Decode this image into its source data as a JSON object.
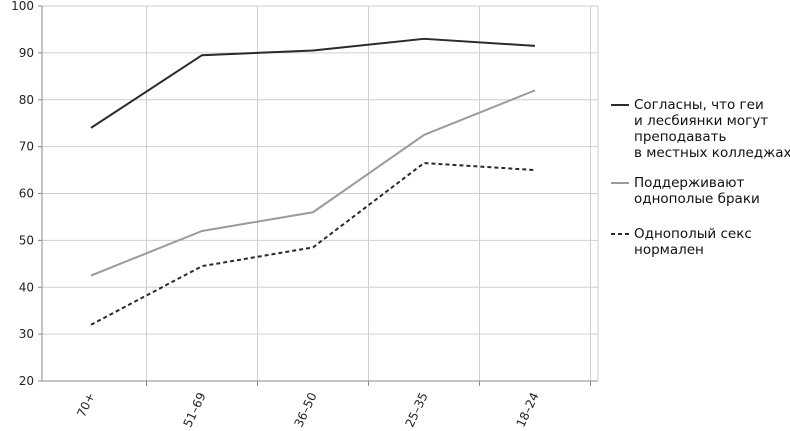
{
  "chart_data": {
    "type": "line",
    "categories": [
      "70+",
      "51–69",
      "36–50",
      "25–35",
      "18–24"
    ],
    "ylim": [
      20,
      100
    ],
    "yticks": [
      20,
      30,
      40,
      50,
      60,
      70,
      80,
      90,
      100
    ],
    "grid": true,
    "legend_position": "right",
    "series": [
      {
        "name": "Согласны, что геи и лесбиянки могут преподавать в местных колледжах",
        "legend_lines": [
          "Согласны, что геи",
          "и лесбиянки могут",
          "преподавать",
          "в местных колледжах"
        ],
        "values": [
          74,
          89.5,
          90.5,
          93,
          91.5
        ],
        "color": "#2a2a2a",
        "style": "solid"
      },
      {
        "name": "Поддерживают однополые браки",
        "legend_lines": [
          "Поддерживают",
          "однополые браки"
        ],
        "values": [
          42.5,
          52,
          56,
          72.5,
          82
        ],
        "color": "#9a9a9a",
        "style": "solid"
      },
      {
        "name": "Однополый секс нормален",
        "legend_lines": [
          "Однополый секс",
          "нормален"
        ],
        "values": [
          32,
          44.5,
          48.5,
          66.5,
          65
        ],
        "color": "#2a2a2a",
        "style": "dashed"
      }
    ]
  }
}
